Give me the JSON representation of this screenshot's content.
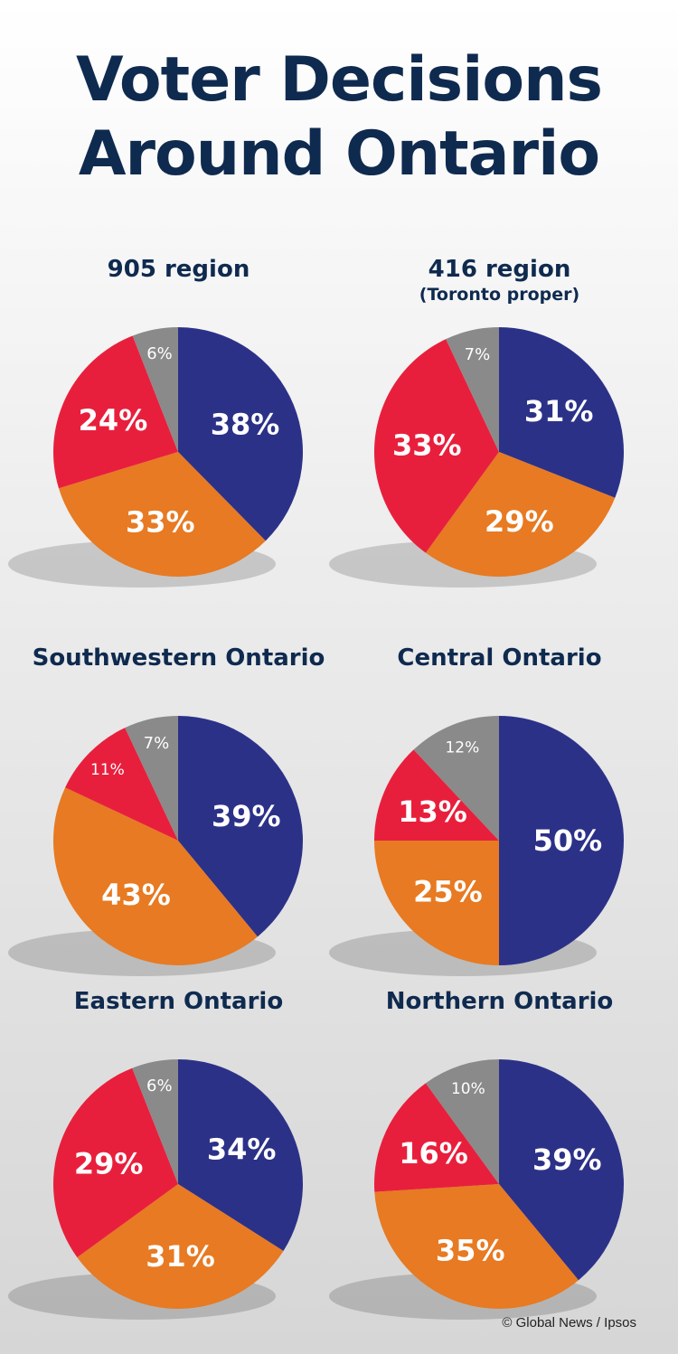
{
  "title": {
    "line1": "Voter Decisions",
    "line2": "Around Ontario"
  },
  "credit": "© Global News / Ipsos",
  "colors": {
    "blue": "#2c3188",
    "orange": "#e77a22",
    "red": "#e81f3c",
    "gray": "#8a8a8a"
  },
  "chart_data": [
    {
      "type": "pie",
      "title": "905 region",
      "subtitle": "",
      "slices": [
        {
          "value": 38,
          "label": "38%",
          "color": "blue"
        },
        {
          "value": 33,
          "label": "33%",
          "color": "orange"
        },
        {
          "value": 24,
          "label": "24%",
          "color": "red"
        },
        {
          "value": 6,
          "label": "6%",
          "color": "gray"
        }
      ]
    },
    {
      "type": "pie",
      "title": "416 region",
      "subtitle": "(Toronto proper)",
      "slices": [
        {
          "value": 31,
          "label": "31%",
          "color": "blue"
        },
        {
          "value": 29,
          "label": "29%",
          "color": "orange"
        },
        {
          "value": 33,
          "label": "33%",
          "color": "red"
        },
        {
          "value": 7,
          "label": "7%",
          "color": "gray"
        }
      ]
    },
    {
      "type": "pie",
      "title": "Southwestern Ontario",
      "subtitle": "",
      "slices": [
        {
          "value": 39,
          "label": "39%",
          "color": "blue"
        },
        {
          "value": 43,
          "label": "43%",
          "color": "orange"
        },
        {
          "value": 11,
          "label": "11%",
          "color": "red"
        },
        {
          "value": 7,
          "label": "7%",
          "color": "gray"
        }
      ]
    },
    {
      "type": "pie",
      "title": "Central Ontario",
      "subtitle": "",
      "slices": [
        {
          "value": 50,
          "label": "50%",
          "color": "blue"
        },
        {
          "value": 25,
          "label": "25%",
          "color": "orange"
        },
        {
          "value": 13,
          "label": "13%",
          "color": "red"
        },
        {
          "value": 12,
          "label": "12%",
          "color": "gray"
        }
      ]
    },
    {
      "type": "pie",
      "title": "Eastern Ontario",
      "subtitle": "",
      "slices": [
        {
          "value": 34,
          "label": "34%",
          "color": "blue"
        },
        {
          "value": 31,
          "label": "31%",
          "color": "orange"
        },
        {
          "value": 29,
          "label": "29%",
          "color": "red"
        },
        {
          "value": 6,
          "label": "6%",
          "color": "gray"
        }
      ]
    },
    {
      "type": "pie",
      "title": "Northern Ontario",
      "subtitle": "",
      "slices": [
        {
          "value": 39,
          "label": "39%",
          "color": "blue"
        },
        {
          "value": 35,
          "label": "35%",
          "color": "orange"
        },
        {
          "value": 16,
          "label": "16%",
          "color": "red"
        },
        {
          "value": 10,
          "label": "10%",
          "color": "gray"
        }
      ]
    }
  ]
}
